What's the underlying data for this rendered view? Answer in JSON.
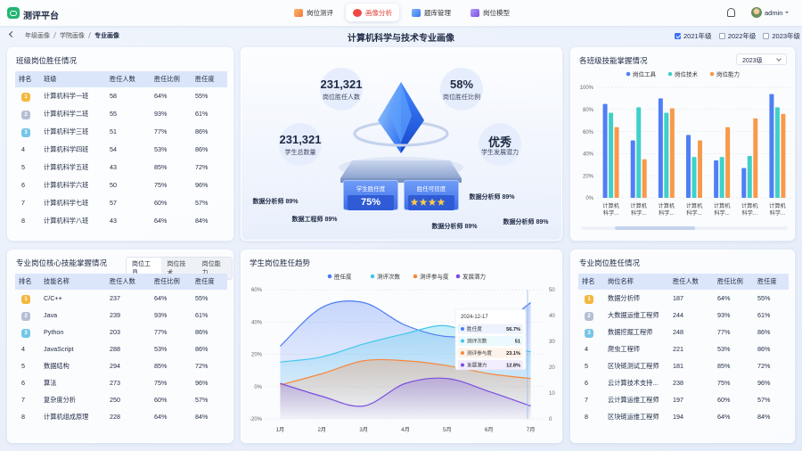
{
  "header": {
    "logo": "测评平台",
    "nav": [
      {
        "label": "岗位测评",
        "active": false
      },
      {
        "label": "画像分析",
        "active": true
      },
      {
        "label": "题库管理",
        "active": false
      },
      {
        "label": "岗位模型",
        "active": false
      }
    ],
    "user": "admin"
  },
  "breadcrumb": [
    "年级画像",
    "学院画像",
    "专业画像"
  ],
  "title": "计算机科学与技术专业画像",
  "grades": [
    {
      "label": "2021年级",
      "checked": true
    },
    {
      "label": "2022年级",
      "checked": false
    },
    {
      "label": "2023年级",
      "checked": false
    }
  ],
  "class_table": {
    "title": "班级岗位胜任情况",
    "columns": [
      "排名",
      "班级",
      "胜任人数",
      "胜任比例",
      "胜任度"
    ],
    "rows": [
      [
        "1",
        "计算机科学一班",
        "58",
        "64%",
        "55%"
      ],
      [
        "2",
        "计算机科学二班",
        "55",
        "93%",
        "61%"
      ],
      [
        "3",
        "计算机科学三班",
        "51",
        "77%",
        "86%"
      ],
      [
        "4",
        "计算机科学四班",
        "54",
        "53%",
        "86%"
      ],
      [
        "5",
        "计算机科学五班",
        "43",
        "85%",
        "72%"
      ],
      [
        "6",
        "计算机科学六班",
        "50",
        "75%",
        "96%"
      ],
      [
        "7",
        "计算机科学七班",
        "57",
        "60%",
        "57%"
      ],
      [
        "8",
        "计算机科学八班",
        "43",
        "64%",
        "84%"
      ]
    ]
  },
  "overview": {
    "stats": [
      {
        "value": "231,321",
        "label": "岗位胜任人数"
      },
      {
        "value": "58%",
        "label": "岗位胜任比例"
      },
      {
        "value": "231,321",
        "label": "学生总数量"
      },
      {
        "value": "优秀",
        "label": "学生发展潜力"
      }
    ],
    "competence": {
      "label": "学生胜任度",
      "value": "75%"
    },
    "credibility": {
      "label": "胜任可信度",
      "stars": 4
    },
    "tags": [
      "数据分析师 89%",
      "数据工程师 89%",
      "数据分析师 89%",
      "数据分析师 89%",
      "数据分析师 89%"
    ]
  },
  "skill_table": {
    "title": "专业岗位核心技能掌握情况",
    "tabs": [
      {
        "label": "岗位工具",
        "active": true
      },
      {
        "label": "岗位技术",
        "active": false
      },
      {
        "label": "岗位能力",
        "active": false
      }
    ],
    "columns": [
      "排名",
      "技能名称",
      "胜任人数",
      "胜任比例",
      "胜任度"
    ],
    "rows": [
      [
        "1",
        "C/C++",
        "237",
        "64%",
        "55%"
      ],
      [
        "2",
        "Java",
        "239",
        "93%",
        "61%"
      ],
      [
        "3",
        "Python",
        "203",
        "77%",
        "86%"
      ],
      [
        "4",
        "JavaScript",
        "288",
        "53%",
        "86%"
      ],
      [
        "5",
        "数据结构",
        "294",
        "85%",
        "72%"
      ],
      [
        "6",
        "算法",
        "273",
        "75%",
        "96%"
      ],
      [
        "7",
        "复杂度分析",
        "250",
        "60%",
        "57%"
      ],
      [
        "8",
        "计算机组成原理",
        "228",
        "64%",
        "84%"
      ]
    ]
  },
  "job_table": {
    "title": "专业岗位胜任情况",
    "columns": [
      "排名",
      "岗位名称",
      "胜任人数",
      "胜任比例",
      "胜任度"
    ],
    "rows": [
      [
        "1",
        "数据分析师",
        "187",
        "64%",
        "55%"
      ],
      [
        "2",
        "大数据运维工程师",
        "244",
        "93%",
        "61%"
      ],
      [
        "3",
        "数据挖掘工程师",
        "248",
        "77%",
        "86%"
      ],
      [
        "4",
        "爬虫工程师",
        "221",
        "53%",
        "86%"
      ],
      [
        "5",
        "区块链测试工程师",
        "181",
        "85%",
        "72%"
      ],
      [
        "6",
        "云计算技术支持...",
        "238",
        "75%",
        "96%"
      ],
      [
        "7",
        "云计算运维工程师",
        "197",
        "60%",
        "57%"
      ],
      [
        "8",
        "区块链运维工程师",
        "194",
        "64%",
        "84%"
      ]
    ]
  },
  "chart_data": [
    {
      "type": "bar",
      "title": "各班级技能掌握情况",
      "filter": "2023级",
      "categories": [
        "计算机科学...",
        "计算机科学...",
        "计算机科学...",
        "计算机科学...",
        "计算机科学...",
        "计算机科学...",
        "计算机科学..."
      ],
      "series": [
        {
          "name": "岗位工具",
          "color": "#4f7ff6",
          "values": [
            85,
            52,
            90,
            57,
            34,
            27,
            94
          ]
        },
        {
          "name": "岗位技术",
          "color": "#3fd0c9",
          "values": [
            77,
            82,
            77,
            37,
            37,
            38,
            82
          ]
        },
        {
          "name": "岗位能力",
          "color": "#f79a4a",
          "values": [
            64,
            35,
            81,
            52,
            64,
            72,
            76
          ]
        }
      ],
      "ylim": [
        0,
        100
      ],
      "yticks": [
        {
          "value": 0,
          "label": "0%"
        },
        {
          "value": 20,
          "label": "20%"
        },
        {
          "value": 40,
          "label": "40%"
        },
        {
          "value": 60,
          "label": "60%"
        },
        {
          "value": 80,
          "label": "80%"
        },
        {
          "value": 100,
          "label": "100%"
        }
      ],
      "grid": true,
      "legend": "top"
    },
    {
      "type": "line",
      "title": "学生岗位胜任趋势",
      "categories": [
        "1月",
        "2月",
        "3月",
        "4月",
        "5月",
        "6月",
        "7月"
      ],
      "series": [
        {
          "name": "胜任度",
          "color": "#4a7cf5",
          "values": [
            25,
            49,
            52,
            38,
            31,
            34,
            52
          ]
        },
        {
          "name": "测评次数",
          "color": "#41c7ec",
          "axis": "y2",
          "values": [
            22,
            24,
            29,
            33,
            36,
            29,
            26
          ]
        },
        {
          "name": "测评参与度",
          "color": "#f5883a",
          "values": [
            1,
            8,
            16,
            16,
            13,
            8,
            5
          ]
        },
        {
          "name": "发展潜力",
          "color": "#7a4ee0",
          "values": [
            2,
            -6,
            -12,
            2,
            5,
            -3,
            -12
          ]
        }
      ],
      "ylim": [
        -20,
        60
      ],
      "yticks": [
        {
          "value": -20,
          "label": "-20%"
        },
        {
          "value": 0,
          "label": "0%"
        },
        {
          "value": 20,
          "label": "20%"
        },
        {
          "value": 40,
          "label": "40%"
        },
        {
          "value": 60,
          "label": "60%"
        }
      ],
      "y2lim": [
        0,
        50
      ],
      "y2ticks": [
        0,
        10,
        20,
        30,
        40,
        50
      ],
      "grid": true,
      "smooth": true,
      "area": true,
      "legend": "top",
      "tooltip": {
        "title": "2024-12-17",
        "values": [
          "56.7%",
          "51",
          "23.1%",
          "12.8%"
        ]
      }
    }
  ]
}
